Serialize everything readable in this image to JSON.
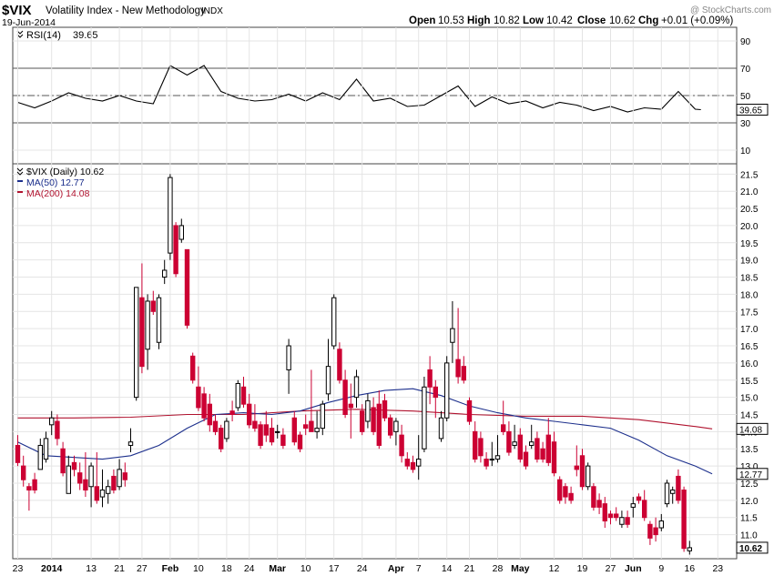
{
  "header": {
    "symbol": "$VIX",
    "name": "Volatility Index - New Methodology",
    "exchange": "INDX",
    "date": "19-Jun-2014",
    "watermark": "@ StockCharts.com",
    "ohlc": {
      "open_label": "Open",
      "open": "10.53",
      "high_label": "High",
      "high": "10.82",
      "low_label": "Low",
      "low": "10.42",
      "close_label": "Close",
      "close": "10.62",
      "chg_label": "Chg",
      "chg": "+0.01 (+0.09%)"
    }
  },
  "colors": {
    "up": "#000000",
    "down": "#cc0033",
    "ma50": "#1c2f8c",
    "ma200": "#b0122e",
    "rsi": "#000000",
    "grid": "#e4e4e4"
  },
  "chart_data": [
    {
      "type": "line",
      "title": "RSI(14) 39.65",
      "legend": {
        "label": "RSI(14)",
        "value": "39.65"
      },
      "ylim": [
        0,
        100
      ],
      "y_ticks": [
        10,
        30,
        50,
        70,
        90
      ],
      "reference_lines": [
        30,
        50,
        70
      ],
      "last_value_tag": "39.65",
      "x_index": [
        0,
        3,
        6,
        9,
        12,
        15,
        18,
        21,
        24,
        27,
        30,
        33,
        36,
        39,
        42,
        45,
        48,
        51,
        54,
        57,
        60,
        63,
        66,
        69,
        72,
        75,
        78,
        81,
        84,
        87,
        90,
        93,
        96,
        99,
        102,
        105,
        108,
        111,
        114,
        117,
        120,
        121
      ],
      "values": [
        45,
        41,
        46,
        52,
        48,
        46,
        50,
        46,
        44,
        72,
        65,
        72,
        53,
        48,
        46,
        47,
        51,
        46,
        52,
        47,
        62,
        46,
        48,
        42,
        43,
        50,
        57,
        42,
        49,
        44,
        46,
        41,
        45,
        43,
        39,
        42,
        38,
        41,
        40,
        53,
        40,
        39.65
      ]
    },
    {
      "type": "candlestick",
      "title": "$VIX (Daily) 10.62",
      "legend": [
        {
          "label": "$VIX (Daily) 10.62"
        },
        {
          "label": "MA(50) 12.77",
          "color": "#1c2f8c"
        },
        {
          "label": "MA(200) 14.08",
          "color": "#b0122e"
        }
      ],
      "ylim": [
        10.3,
        21.8
      ],
      "y_ticks": [
        "11.0",
        "11.5",
        "12.0",
        "12.5",
        "13.0",
        "13.5",
        "14.0",
        "14.5",
        "15.0",
        "15.5",
        "16.0",
        "16.5",
        "17.0",
        "17.5",
        "18.0",
        "18.5",
        "19.0",
        "19.5",
        "20.0",
        "20.5",
        "21.0",
        "21.5"
      ],
      "y_tick_values": [
        11,
        11.5,
        12,
        12.5,
        13,
        13.5,
        14,
        14.5,
        15,
        15.5,
        16,
        16.5,
        17,
        17.5,
        18,
        18.5,
        19,
        19.5,
        20,
        20.5,
        21,
        21.5
      ],
      "x_ticks": [
        {
          "label": "23",
          "index": 0
        },
        {
          "label": "2014",
          "index": 6
        },
        {
          "label": "13",
          "index": 13
        },
        {
          "label": "21",
          "index": 18
        },
        {
          "label": "27",
          "index": 22
        },
        {
          "label": "Feb",
          "index": 27
        },
        {
          "label": "10",
          "index": 32
        },
        {
          "label": "18",
          "index": 37
        },
        {
          "label": "24",
          "index": 41
        },
        {
          "label": "Mar",
          "index": 46
        },
        {
          "label": "10",
          "index": 51
        },
        {
          "label": "17",
          "index": 56
        },
        {
          "label": "24",
          "index": 61
        },
        {
          "label": "Apr",
          "index": 67
        },
        {
          "label": "7",
          "index": 71
        },
        {
          "label": "14",
          "index": 76
        },
        {
          "label": "21",
          "index": 80
        },
        {
          "label": "28",
          "index": 85
        },
        {
          "label": "May",
          "index": 89
        },
        {
          "label": "12",
          "index": 95
        },
        {
          "label": "19",
          "index": 100
        },
        {
          "label": "27",
          "index": 105
        },
        {
          "label": "Jun",
          "index": 109
        },
        {
          "label": "9",
          "index": 114
        },
        {
          "label": "16",
          "index": 119
        },
        {
          "label": "23",
          "index": 124
        }
      ],
      "candles": [
        {
          "o": 13.6,
          "h": 13.9,
          "l": 13.0,
          "c": 13.1
        },
        {
          "o": 13.0,
          "h": 13.3,
          "l": 12.4,
          "c": 12.6
        },
        {
          "o": 12.4,
          "h": 12.5,
          "l": 11.7,
          "c": 12.3
        },
        {
          "o": 12.6,
          "h": 12.8,
          "l": 12.2,
          "c": 12.3
        },
        {
          "o": 12.9,
          "h": 13.8,
          "l": 12.9,
          "c": 13.6
        },
        {
          "o": 13.2,
          "h": 14.0,
          "l": 13.1,
          "c": 13.8
        },
        {
          "o": 14.2,
          "h": 14.6,
          "l": 13.9,
          "c": 14.4
        },
        {
          "o": 14.3,
          "h": 14.5,
          "l": 13.6,
          "c": 13.8
        },
        {
          "o": 13.5,
          "h": 13.7,
          "l": 12.7,
          "c": 12.8
        },
        {
          "o": 12.2,
          "h": 13.3,
          "l": 12.2,
          "c": 13.0
        },
        {
          "o": 13.1,
          "h": 13.3,
          "l": 12.7,
          "c": 12.9
        },
        {
          "o": 12.8,
          "h": 13.1,
          "l": 12.3,
          "c": 12.5
        },
        {
          "o": 12.6,
          "h": 13.4,
          "l": 12.1,
          "c": 12.3
        },
        {
          "o": 12.4,
          "h": 13.1,
          "l": 11.8,
          "c": 13.0
        },
        {
          "o": 12.4,
          "h": 13.4,
          "l": 11.9,
          "c": 12.0
        },
        {
          "o": 12.1,
          "h": 12.9,
          "l": 11.8,
          "c": 12.3
        },
        {
          "o": 12.2,
          "h": 12.6,
          "l": 11.9,
          "c": 12.4
        },
        {
          "o": 12.7,
          "h": 12.9,
          "l": 12.2,
          "c": 12.3
        },
        {
          "o": 12.4,
          "h": 13.2,
          "l": 12.3,
          "c": 12.9
        },
        {
          "o": 12.8,
          "h": 13.1,
          "l": 12.4,
          "c": 12.6
        },
        {
          "o": 13.6,
          "h": 14.1,
          "l": 13.4,
          "c": 13.7
        },
        {
          "o": 15.0,
          "h": 18.2,
          "l": 14.9,
          "c": 18.2
        },
        {
          "o": 17.9,
          "h": 18.9,
          "l": 15.7,
          "c": 15.9
        },
        {
          "o": 16.4,
          "h": 18.0,
          "l": 15.8,
          "c": 17.8
        },
        {
          "o": 17.8,
          "h": 18.1,
          "l": 17.4,
          "c": 17.5
        },
        {
          "o": 16.6,
          "h": 18.0,
          "l": 16.4,
          "c": 17.9
        },
        {
          "o": 18.5,
          "h": 19.0,
          "l": 18.3,
          "c": 18.7
        },
        {
          "o": 19.2,
          "h": 21.5,
          "l": 19.0,
          "c": 21.4
        },
        {
          "o": 20.0,
          "h": 20.1,
          "l": 18.5,
          "c": 18.6
        },
        {
          "o": 19.6,
          "h": 20.2,
          "l": 19.5,
          "c": 20.0
        },
        {
          "o": 19.3,
          "h": 19.3,
          "l": 17.0,
          "c": 17.1
        },
        {
          "o": 16.2,
          "h": 16.3,
          "l": 15.4,
          "c": 15.5
        },
        {
          "o": 15.3,
          "h": 15.9,
          "l": 14.6,
          "c": 14.7
        },
        {
          "o": 15.1,
          "h": 15.3,
          "l": 14.3,
          "c": 14.4
        },
        {
          "o": 14.8,
          "h": 15.1,
          "l": 14.0,
          "c": 14.2
        },
        {
          "o": 14.3,
          "h": 14.5,
          "l": 13.9,
          "c": 14.0
        },
        {
          "o": 14.1,
          "h": 14.2,
          "l": 13.4,
          "c": 13.5
        },
        {
          "o": 13.8,
          "h": 14.4,
          "l": 13.7,
          "c": 14.3
        },
        {
          "o": 14.6,
          "h": 14.9,
          "l": 14.3,
          "c": 14.5
        },
        {
          "o": 14.7,
          "h": 15.5,
          "l": 14.6,
          "c": 15.4
        },
        {
          "o": 15.3,
          "h": 15.6,
          "l": 14.7,
          "c": 14.8
        },
        {
          "o": 14.8,
          "h": 15.1,
          "l": 14.1,
          "c": 14.2
        },
        {
          "o": 14.3,
          "h": 14.8,
          "l": 14.0,
          "c": 14.1
        },
        {
          "o": 14.2,
          "h": 14.3,
          "l": 13.5,
          "c": 13.6
        },
        {
          "o": 14.2,
          "h": 14.6,
          "l": 13.7,
          "c": 13.9
        },
        {
          "o": 14.1,
          "h": 14.4,
          "l": 13.6,
          "c": 13.7
        },
        {
          "o": 14.0,
          "h": 14.2,
          "l": 13.8,
          "c": 14.0
        },
        {
          "o": 13.9,
          "h": 14.1,
          "l": 13.5,
          "c": 13.6
        },
        {
          "o": 15.8,
          "h": 16.7,
          "l": 15.1,
          "c": 16.5
        },
        {
          "o": 14.4,
          "h": 14.6,
          "l": 13.6,
          "c": 13.7
        },
        {
          "o": 13.9,
          "h": 14.0,
          "l": 13.4,
          "c": 13.5
        },
        {
          "o": 14.2,
          "h": 14.5,
          "l": 13.9,
          "c": 14.1
        },
        {
          "o": 14.3,
          "h": 15.8,
          "l": 14.0,
          "c": 14.0
        },
        {
          "o": 14.0,
          "h": 14.6,
          "l": 13.8,
          "c": 14.1
        },
        {
          "o": 14.1,
          "h": 14.9,
          "l": 13.9,
          "c": 14.8
        },
        {
          "o": 15.1,
          "h": 16.7,
          "l": 14.9,
          "c": 15.9
        },
        {
          "o": 16.5,
          "h": 18.0,
          "l": 16.4,
          "c": 17.9
        },
        {
          "o": 16.4,
          "h": 16.6,
          "l": 15.4,
          "c": 15.5
        },
        {
          "o": 15.5,
          "h": 15.8,
          "l": 14.4,
          "c": 14.5
        },
        {
          "o": 14.8,
          "h": 15.4,
          "l": 13.8,
          "c": 14.7
        },
        {
          "o": 15.0,
          "h": 15.8,
          "l": 14.7,
          "c": 15.6
        },
        {
          "o": 14.6,
          "h": 14.8,
          "l": 13.9,
          "c": 14.0
        },
        {
          "o": 14.3,
          "h": 15.1,
          "l": 14.1,
          "c": 14.9
        },
        {
          "o": 14.7,
          "h": 15.0,
          "l": 13.9,
          "c": 14.0
        },
        {
          "o": 14.8,
          "h": 15.2,
          "l": 13.5,
          "c": 13.6
        },
        {
          "o": 14.9,
          "h": 15.1,
          "l": 14.3,
          "c": 14.4
        },
        {
          "o": 14.4,
          "h": 14.5,
          "l": 13.8,
          "c": 13.9
        },
        {
          "o": 14.0,
          "h": 14.4,
          "l": 13.6,
          "c": 14.3
        },
        {
          "o": 13.9,
          "h": 14.2,
          "l": 13.1,
          "c": 13.3
        },
        {
          "o": 13.2,
          "h": 13.4,
          "l": 12.9,
          "c": 13.0
        },
        {
          "o": 13.1,
          "h": 13.3,
          "l": 12.8,
          "c": 12.9
        },
        {
          "o": 13.0,
          "h": 13.9,
          "l": 12.6,
          "c": 13.2
        },
        {
          "o": 13.5,
          "h": 15.6,
          "l": 13.4,
          "c": 15.3
        },
        {
          "o": 15.8,
          "h": 16.2,
          "l": 14.8,
          "c": 15.3
        },
        {
          "o": 15.3,
          "h": 15.5,
          "l": 14.4,
          "c": 15.0
        },
        {
          "o": 13.8,
          "h": 14.6,
          "l": 13.7,
          "c": 14.4
        },
        {
          "o": 14.4,
          "h": 16.2,
          "l": 14.3,
          "c": 16.0
        },
        {
          "o": 16.6,
          "h": 17.8,
          "l": 16.0,
          "c": 17.0
        },
        {
          "o": 16.1,
          "h": 17.6,
          "l": 15.4,
          "c": 15.6
        },
        {
          "o": 15.9,
          "h": 16.2,
          "l": 15.4,
          "c": 15.5
        },
        {
          "o": 14.9,
          "h": 15.0,
          "l": 14.2,
          "c": 14.3
        },
        {
          "o": 14.0,
          "h": 14.3,
          "l": 13.1,
          "c": 13.2
        },
        {
          "o": 13.8,
          "h": 14.0,
          "l": 13.1,
          "c": 13.3
        },
        {
          "o": 13.2,
          "h": 13.4,
          "l": 12.9,
          "c": 13.0
        },
        {
          "o": 13.2,
          "h": 13.7,
          "l": 13.0,
          "c": 13.2
        },
        {
          "o": 13.2,
          "h": 13.9,
          "l": 13.1,
          "c": 13.3
        },
        {
          "o": 14.2,
          "h": 14.9,
          "l": 13.9,
          "c": 14.0
        },
        {
          "o": 14.0,
          "h": 14.3,
          "l": 13.3,
          "c": 13.4
        },
        {
          "o": 13.6,
          "h": 14.2,
          "l": 13.5,
          "c": 13.7
        },
        {
          "o": 13.9,
          "h": 14.1,
          "l": 13.1,
          "c": 13.2
        },
        {
          "o": 13.4,
          "h": 13.6,
          "l": 12.9,
          "c": 13.0
        },
        {
          "o": 13.6,
          "h": 14.2,
          "l": 13.5,
          "c": 13.7
        },
        {
          "o": 13.8,
          "h": 14.0,
          "l": 13.1,
          "c": 13.2
        },
        {
          "o": 13.5,
          "h": 13.7,
          "l": 13.1,
          "c": 13.2
        },
        {
          "o": 13.9,
          "h": 14.4,
          "l": 13.0,
          "c": 13.1
        },
        {
          "o": 13.7,
          "h": 14.0,
          "l": 12.7,
          "c": 12.8
        },
        {
          "o": 12.6,
          "h": 12.7,
          "l": 11.9,
          "c": 12.0
        },
        {
          "o": 12.4,
          "h": 12.5,
          "l": 11.9,
          "c": 12.1
        },
        {
          "o": 12.2,
          "h": 12.4,
          "l": 11.9,
          "c": 12.0
        },
        {
          "o": 13.0,
          "h": 13.6,
          "l": 12.7,
          "c": 12.9
        },
        {
          "o": 13.3,
          "h": 13.5,
          "l": 12.3,
          "c": 12.4
        },
        {
          "o": 12.4,
          "h": 13.1,
          "l": 12.3,
          "c": 13.0
        },
        {
          "o": 12.4,
          "h": 12.5,
          "l": 11.7,
          "c": 11.8
        },
        {
          "o": 12.0,
          "h": 12.2,
          "l": 11.6,
          "c": 11.8
        },
        {
          "o": 11.9,
          "h": 12.1,
          "l": 11.2,
          "c": 11.4
        },
        {
          "o": 11.6,
          "h": 11.7,
          "l": 11.3,
          "c": 11.5
        },
        {
          "o": 11.6,
          "h": 11.8,
          "l": 11.4,
          "c": 11.5
        },
        {
          "o": 11.3,
          "h": 11.7,
          "l": 11.2,
          "c": 11.5
        },
        {
          "o": 11.5,
          "h": 11.7,
          "l": 11.2,
          "c": 11.3
        },
        {
          "o": 11.8,
          "h": 12.1,
          "l": 11.5,
          "c": 11.9
        },
        {
          "o": 12.1,
          "h": 12.2,
          "l": 11.9,
          "c": 12.0
        },
        {
          "o": 12.0,
          "h": 12.3,
          "l": 11.4,
          "c": 11.5
        },
        {
          "o": 11.3,
          "h": 11.4,
          "l": 10.7,
          "c": 10.9
        },
        {
          "o": 11.2,
          "h": 11.5,
          "l": 10.8,
          "c": 11.0
        },
        {
          "o": 11.2,
          "h": 11.6,
          "l": 11.1,
          "c": 11.4
        },
        {
          "o": 11.9,
          "h": 12.6,
          "l": 11.8,
          "c": 12.5
        },
        {
          "o": 12.2,
          "h": 12.4,
          "l": 11.9,
          "c": 12.3
        },
        {
          "o": 12.7,
          "h": 12.9,
          "l": 11.9,
          "c": 12.0
        },
        {
          "o": 12.3,
          "h": 12.4,
          "l": 10.5,
          "c": 10.6
        },
        {
          "o": 10.53,
          "h": 10.82,
          "l": 10.42,
          "c": 10.62
        }
      ],
      "ma50": {
        "label": "MA(50)",
        "value": "12.77",
        "x_index": [
          0,
          5,
          10,
          15,
          20,
          25,
          30,
          35,
          40,
          45,
          50,
          55,
          60,
          65,
          70,
          75,
          80,
          85,
          90,
          95,
          100,
          105,
          110,
          115,
          120,
          123
        ],
        "values": [
          13.7,
          13.3,
          13.25,
          13.2,
          13.3,
          13.6,
          14.1,
          14.5,
          14.55,
          14.5,
          14.6,
          14.85,
          15.05,
          15.2,
          15.25,
          15.05,
          14.75,
          14.55,
          14.4,
          14.3,
          14.2,
          14.1,
          13.75,
          13.3,
          13.0,
          12.77
        ]
      },
      "ma200": {
        "label": "MA(200)",
        "value": "14.08",
        "x_index": [
          0,
          10,
          20,
          30,
          40,
          50,
          60,
          70,
          80,
          90,
          100,
          110,
          115,
          120,
          123
        ],
        "values": [
          14.4,
          14.4,
          14.42,
          14.5,
          14.5,
          14.6,
          14.65,
          14.6,
          14.5,
          14.45,
          14.45,
          14.35,
          14.25,
          14.15,
          14.08
        ]
      },
      "last_value_tags": [
        {
          "label": "14.08",
          "value": 14.08,
          "series": "ma200"
        },
        {
          "label": "12.77",
          "value": 12.77,
          "series": "ma50"
        },
        {
          "label": "10.62",
          "value": 10.62,
          "series": "price"
        }
      ]
    }
  ]
}
